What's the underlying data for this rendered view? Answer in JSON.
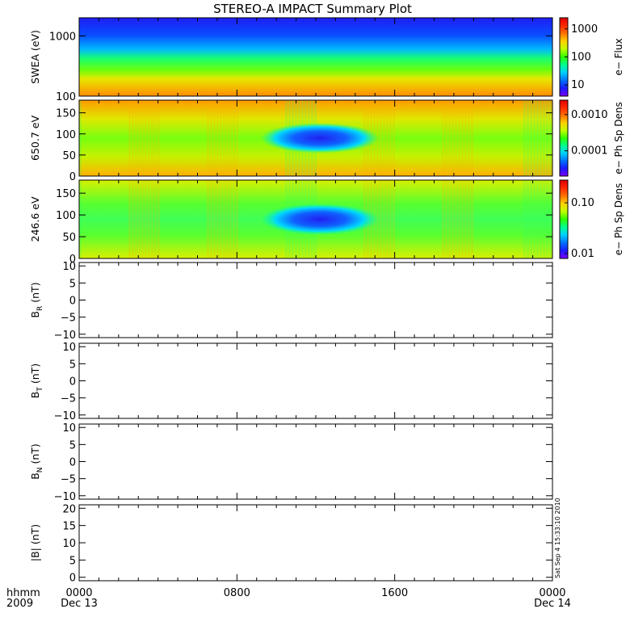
{
  "chart_data": [
    {
      "type": "heatmap",
      "title": "STEREO-A IMPACT Summary Plot",
      "ylabel": "SWEA (eV)",
      "yscale": "log",
      "ylim": [
        100,
        2000
      ],
      "yticks": [
        {
          "v": 100,
          "label": "100"
        },
        {
          "v": 1000,
          "label": "1000"
        }
      ],
      "colorbar_label": "e− Flux",
      "colorbar_scale": "log",
      "colorbar_range": [
        4,
        2500
      ],
      "colorbar_ticks": [
        {
          "v": 10,
          "label": "10"
        },
        {
          "v": 100,
          "label": "100"
        },
        {
          "v": 1000,
          "label": "1000"
        }
      ],
      "features": "Flux highest (orange-red) at low energy, decreasing through green to blue above ~1000 eV."
    },
    {
      "type": "heatmap",
      "ylabel": "650.7 eV",
      "ylim": [
        0,
        180
      ],
      "yticks": [
        {
          "v": 0,
          "label": "0"
        },
        {
          "v": 50,
          "label": "50"
        },
        {
          "v": 100,
          "label": "100"
        },
        {
          "v": 150,
          "label": "150"
        }
      ],
      "colorbar_label": "e− Ph Sp Dens",
      "colorbar_scale": "log",
      "colorbar_range": [
        2e-05,
        0.0025
      ],
      "colorbar_ticks": [
        {
          "v": 0.0001,
          "label": "0.0001"
        },
        {
          "v": 0.001,
          "label": "0.0010"
        }
      ]
    },
    {
      "type": "heatmap",
      "ylabel": "246.6 eV",
      "ylim": [
        0,
        180
      ],
      "yticks": [
        {
          "v": 0,
          "label": "0"
        },
        {
          "v": 50,
          "label": "50"
        },
        {
          "v": 100,
          "label": "100"
        },
        {
          "v": 150,
          "label": "150"
        }
      ],
      "colorbar_label": "e− Ph Sp Dens",
      "colorbar_scale": "log",
      "colorbar_range": [
        0.008,
        0.28
      ],
      "colorbar_ticks": [
        {
          "v": 0.01,
          "label": "0.01"
        },
        {
          "v": 0.1,
          "label": "0.10"
        }
      ]
    },
    {
      "type": "line",
      "ylabel_main": "B",
      "ylabel_sub": "R",
      "ylabel_unit": " (nT)",
      "ylim": [
        -11,
        11
      ],
      "yticks": [
        {
          "v": -10,
          "label": "−10"
        },
        {
          "v": -5,
          "label": "−5"
        },
        {
          "v": 0,
          "label": "0"
        },
        {
          "v": 5,
          "label": "5"
        },
        {
          "v": 10,
          "label": "10"
        }
      ],
      "series": []
    },
    {
      "type": "line",
      "ylabel_main": "B",
      "ylabel_sub": "T",
      "ylabel_unit": " (nT)",
      "ylim": [
        -11,
        11
      ],
      "yticks": [
        {
          "v": -10,
          "label": "−10"
        },
        {
          "v": -5,
          "label": "−5"
        },
        {
          "v": 0,
          "label": "0"
        },
        {
          "v": 5,
          "label": "5"
        },
        {
          "v": 10,
          "label": "10"
        }
      ],
      "series": []
    },
    {
      "type": "line",
      "ylabel_main": "B",
      "ylabel_sub": "N",
      "ylabel_unit": " (nT)",
      "ylim": [
        -11,
        11
      ],
      "yticks": [
        {
          "v": -10,
          "label": "−10"
        },
        {
          "v": -5,
          "label": "−5"
        },
        {
          "v": 0,
          "label": "0"
        },
        {
          "v": 5,
          "label": "5"
        },
        {
          "v": 10,
          "label": "10"
        }
      ],
      "series": []
    },
    {
      "type": "line",
      "ylabel_main": "|B|",
      "ylabel_sub": "",
      "ylabel_unit": " (nT)",
      "ylim": [
        -1,
        21
      ],
      "yticks": [
        {
          "v": 0,
          "label": "0"
        },
        {
          "v": 5,
          "label": "5"
        },
        {
          "v": 10,
          "label": "10"
        },
        {
          "v": 15,
          "label": "15"
        },
        {
          "v": 20,
          "label": "20"
        }
      ],
      "series": []
    }
  ],
  "time_axis": {
    "label_top": "hhmm",
    "label_bottom": "2009",
    "xlim_hours": [
      0,
      24
    ],
    "ticks": [
      {
        "h": 0,
        "top": "0000",
        "bottom": "Dec 13"
      },
      {
        "h": 8,
        "top": "0800",
        "bottom": ""
      },
      {
        "h": 16,
        "top": "1600",
        "bottom": ""
      },
      {
        "h": 24,
        "top": "0000",
        "bottom": "Dec 14"
      }
    ]
  },
  "colors": {
    "colormap": [
      "#7c00ff",
      "#1a1aff",
      "#0070ff",
      "#00d0ff",
      "#00ff90",
      "#30ff00",
      "#c0ff00",
      "#ffd200",
      "#ff7000",
      "#ff2800",
      "#e00000"
    ],
    "swea_scene": {
      "bands": [
        {
          "frac": 0.0,
          "color": "#1e1ef2"
        },
        {
          "frac": 0.22,
          "color": "#0a4cff"
        },
        {
          "frac": 0.4,
          "color": "#00b8ff"
        },
        {
          "frac": 0.52,
          "color": "#18ff6e"
        },
        {
          "frac": 0.66,
          "color": "#66ff10"
        },
        {
          "frac": 0.78,
          "color": "#e6e800"
        },
        {
          "frac": 1.0,
          "color": "#ff8c00"
        }
      ]
    }
  },
  "stamp": "Sat Sep  4 15:33:10 2010"
}
